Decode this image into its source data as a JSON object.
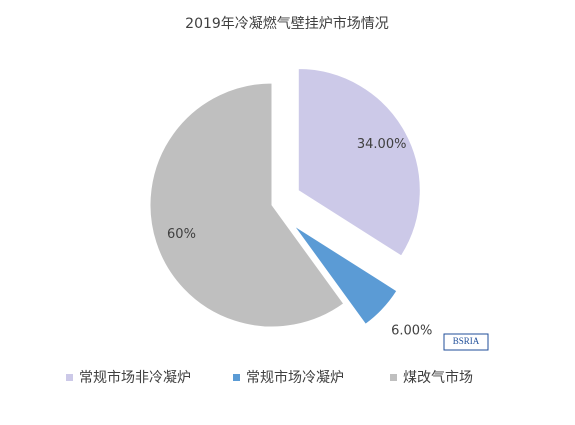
{
  "chart_data": {
    "type": "pie",
    "title": "2019年冷凝燃气壁挂炉市场情况",
    "categories": [
      "常规市场非冷凝炉",
      "常规市场冷凝炉",
      "煤改气市场"
    ],
    "values": [
      34,
      6,
      60
    ],
    "value_labels": [
      "34.00%",
      "6.00%",
      "60%"
    ],
    "colors": [
      "#ccc9e8",
      "#5b9bd5",
      "#bfbfbf"
    ],
    "exploded": [
      true,
      true,
      false
    ],
    "legend": "bottom",
    "logo": "BSRIA"
  }
}
